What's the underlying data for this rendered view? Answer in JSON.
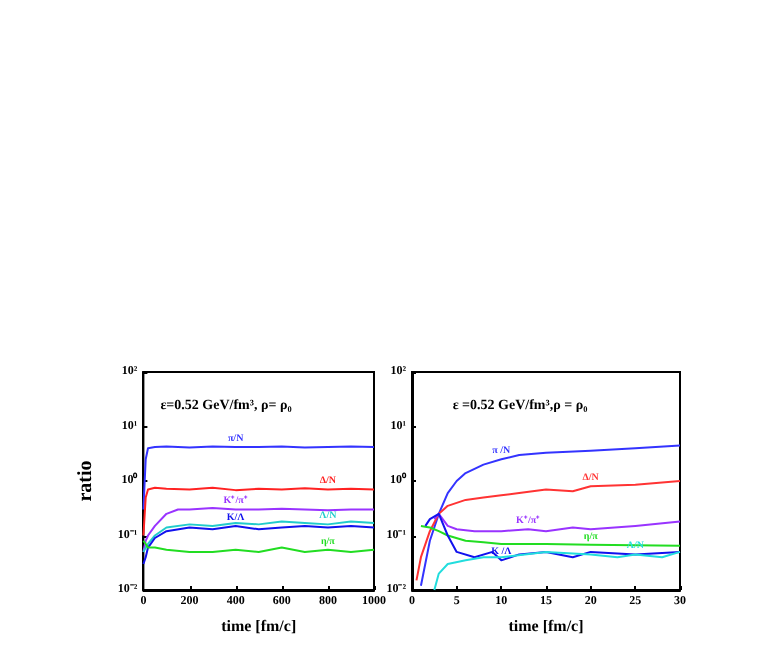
{
  "chart_data": [
    {
      "type": "line",
      "title": "ε=0.52 GeV/fm³, ρ= ρ₀",
      "xlabel": "time [fm/c]",
      "ylabel": "ratio",
      "log": "y",
      "xlim": [
        0,
        1000
      ],
      "xticks": [
        0,
        200,
        400,
        600,
        800,
        1000
      ],
      "ylim": [
        0.01,
        100
      ],
      "yticks": [
        {
          "value": 0.01,
          "label": "10⁻²"
        },
        {
          "value": 0.1,
          "label": "10⁻¹"
        },
        {
          "value": 1,
          "label": "10⁰"
        },
        {
          "value": 10,
          "label": "10¹"
        },
        {
          "value": 100,
          "label": "10²"
        }
      ],
      "grid": false,
      "legend": false,
      "series": [
        {
          "name": "π/N",
          "color": "#3333ff",
          "x": [
            0,
            10,
            20,
            50,
            100,
            200,
            300,
            400,
            500,
            600,
            700,
            800,
            900,
            1000
          ],
          "values": [
            0.3,
            2.5,
            4,
            4.2,
            4.3,
            4.1,
            4.3,
            4.2,
            4.2,
            4.3,
            4.1,
            4.2,
            4.3,
            4.2
          ]
        },
        {
          "name": "Δ/N",
          "color": "#ff2222",
          "x": [
            0,
            10,
            20,
            50,
            100,
            200,
            300,
            400,
            500,
            600,
            700,
            800,
            900,
            1000
          ],
          "values": [
            0.1,
            0.5,
            0.7,
            0.75,
            0.72,
            0.7,
            0.75,
            0.68,
            0.72,
            0.7,
            0.74,
            0.7,
            0.72,
            0.7
          ]
        },
        {
          "name": "K⁺/π⁺",
          "color": "#9933ff",
          "x": [
            0,
            10,
            20,
            50,
            100,
            150,
            200,
            300,
            400,
            500,
            600,
            700,
            800,
            900,
            1000
          ],
          "values": [
            0.05,
            0.08,
            0.1,
            0.15,
            0.25,
            0.3,
            0.3,
            0.32,
            0.3,
            0.3,
            0.31,
            0.3,
            0.29,
            0.3,
            0.3
          ]
        },
        {
          "name": "Λ/N",
          "color": "#22cccc",
          "x": [
            0,
            10,
            20,
            50,
            100,
            200,
            300,
            400,
            500,
            600,
            700,
            800,
            900,
            1000
          ],
          "values": [
            0.05,
            0.06,
            0.07,
            0.1,
            0.14,
            0.16,
            0.15,
            0.17,
            0.16,
            0.18,
            0.17,
            0.16,
            0.18,
            0.17
          ]
        },
        {
          "name": "K/Λ",
          "color": "#1111ee",
          "x": [
            0,
            10,
            20,
            50,
            100,
            200,
            300,
            400,
            500,
            600,
            700,
            800,
            900,
            1000
          ],
          "values": [
            0.03,
            0.04,
            0.06,
            0.09,
            0.12,
            0.14,
            0.13,
            0.15,
            0.13,
            0.14,
            0.15,
            0.14,
            0.15,
            0.14
          ]
        },
        {
          "name": "η/π",
          "color": "#22dd22",
          "x": [
            0,
            10,
            20,
            50,
            100,
            200,
            300,
            400,
            500,
            600,
            700,
            800,
            900,
            1000
          ],
          "values": [
            0.08,
            0.07,
            0.06,
            0.06,
            0.055,
            0.05,
            0.05,
            0.055,
            0.05,
            0.06,
            0.05,
            0.055,
            0.05,
            0.055
          ]
        }
      ]
    },
    {
      "type": "line",
      "title": "ε =0.52 GeV/fm³,ρ = ρ₀",
      "xlabel": "time [fm/c]",
      "log": "y",
      "xlim": [
        0,
        30
      ],
      "xticks": [
        0,
        5,
        10,
        15,
        20,
        25,
        30
      ],
      "ylim": [
        0.01,
        100
      ],
      "yticks": [
        {
          "value": 0.01,
          "label": "10⁻²"
        },
        {
          "value": 0.1,
          "label": "10⁻¹"
        },
        {
          "value": 1,
          "label": "10⁰"
        },
        {
          "value": 10,
          "label": "10¹"
        },
        {
          "value": 100,
          "label": "10²"
        }
      ],
      "grid": false,
      "legend": false,
      "series": [
        {
          "name": "π /N",
          "color": "#3333ff",
          "x": [
            1,
            2,
            3,
            4,
            5,
            6,
            8,
            10,
            12,
            15,
            20,
            25,
            30
          ],
          "values": [
            0.012,
            0.08,
            0.25,
            0.6,
            1,
            1.4,
            2,
            2.5,
            3,
            3.3,
            3.6,
            4,
            4.5
          ]
        },
        {
          "name": "Δ/N",
          "color": "#ff3333",
          "x": [
            0.5,
            1,
            2,
            3,
            4,
            6,
            8,
            10,
            12,
            15,
            18,
            20,
            25,
            30
          ],
          "values": [
            0.015,
            0.04,
            0.12,
            0.25,
            0.35,
            0.45,
            0.5,
            0.55,
            0.6,
            0.7,
            0.65,
            0.8,
            0.85,
            1
          ]
        },
        {
          "name": "K⁺/π⁺",
          "color": "#9933ff",
          "x": [
            2.5,
            3,
            4,
            5,
            7,
            10,
            13,
            15,
            18,
            20,
            25,
            30
          ],
          "values": [
            0.2,
            0.25,
            0.15,
            0.13,
            0.12,
            0.12,
            0.13,
            0.12,
            0.14,
            0.13,
            0.15,
            0.18
          ]
        },
        {
          "name": "η/π",
          "color": "#22dd22",
          "x": [
            1,
            2,
            3,
            4,
            6,
            8,
            10,
            15,
            20,
            25,
            30
          ],
          "values": [
            0.15,
            0.14,
            0.12,
            0.1,
            0.08,
            0.075,
            0.07,
            0.07,
            0.068,
            0.066,
            0.065
          ]
        },
        {
          "name": "K /Λ",
          "color": "#1111ee",
          "x": [
            1.5,
            2,
            3,
            4,
            5,
            7,
            9,
            10,
            12,
            15,
            18,
            20,
            25,
            30
          ],
          "values": [
            0.15,
            0.2,
            0.25,
            0.1,
            0.05,
            0.04,
            0.05,
            0.035,
            0.045,
            0.05,
            0.04,
            0.05,
            0.045,
            0.05
          ]
        },
        {
          "name": "Λ/N",
          "color": "#22dddd",
          "x": [
            2.5,
            3,
            4,
            6,
            8,
            10,
            15,
            20,
            23,
            25,
            28,
            30
          ],
          "values": [
            0.01,
            0.02,
            0.03,
            0.035,
            0.04,
            0.04,
            0.05,
            0.045,
            0.04,
            0.045,
            0.04,
            0.05
          ]
        }
      ]
    }
  ]
}
